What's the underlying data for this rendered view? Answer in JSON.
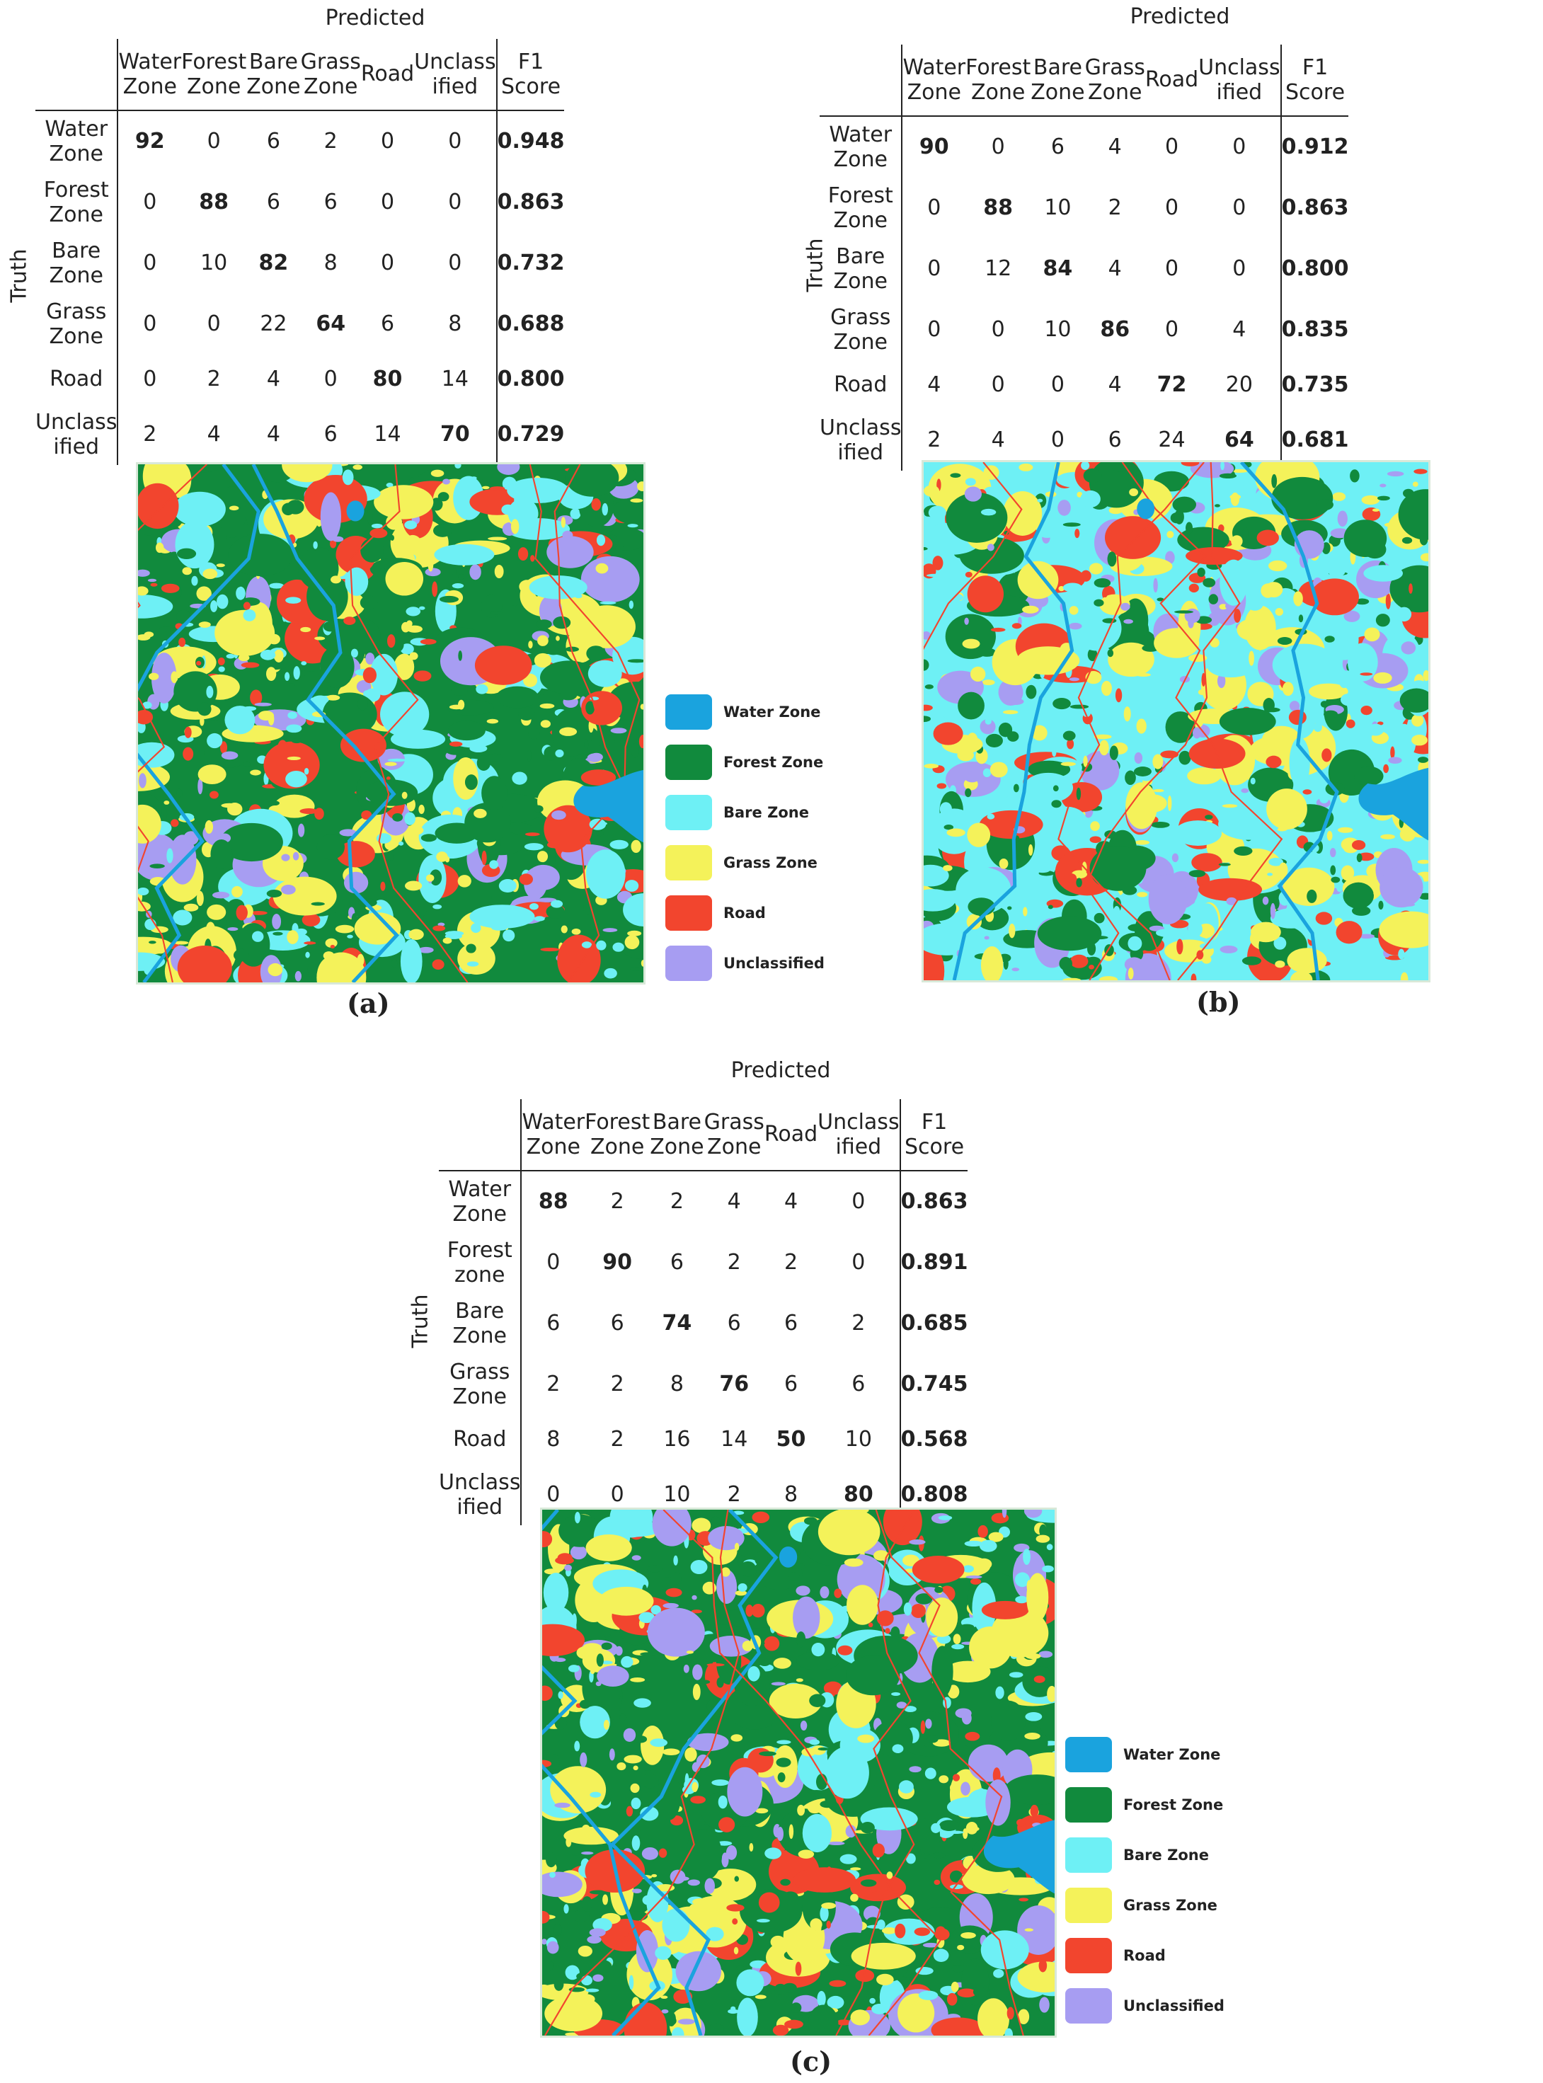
{
  "colors": {
    "water": "#1aa3de",
    "forest": "#118a3d",
    "bare": "#6ef0f5",
    "grass": "#f4f25a",
    "road": "#f2452e",
    "unclassified": "#a79df2"
  },
  "legend": [
    {
      "label": "Water Zone",
      "color": "#1aa3de"
    },
    {
      "label": "Forest Zone",
      "color": "#118a3d"
    },
    {
      "label": "Bare Zone",
      "color": "#6ef0f5"
    },
    {
      "label": "Grass Zone",
      "color": "#f4f25a"
    },
    {
      "label": "Road",
      "color": "#f2452e"
    },
    {
      "label": "Unclassified",
      "color": "#a79df2"
    }
  ],
  "panels": [
    {
      "caption": "(a)",
      "predicted_label": "Predicted",
      "truth_label": "Truth",
      "columns": [
        "Water\nZone",
        "Forest\nZone",
        "Bare\nZone",
        "Grass\nZone",
        "Road",
        "Unclass\nified"
      ],
      "f1_header": "F1\nScore",
      "rows": [
        {
          "label": "Water\nZone",
          "values": [
            "92",
            "0",
            "6",
            "2",
            "0",
            "0"
          ],
          "f1": "0.948"
        },
        {
          "label": "Forest\nZone",
          "values": [
            "0",
            "88",
            "6",
            "6",
            "0",
            "0"
          ],
          "f1": "0.863"
        },
        {
          "label": "Bare\nZone",
          "values": [
            "0",
            "10",
            "82",
            "8",
            "0",
            "0"
          ],
          "f1": "0.732"
        },
        {
          "label": "Grass\nZone",
          "values": [
            "0",
            "0",
            "22",
            "64",
            "6",
            "8"
          ],
          "f1": "0.688"
        },
        {
          "label": "Road",
          "values": [
            "0",
            "2",
            "4",
            "0",
            "80",
            "14"
          ],
          "f1": "0.800"
        },
        {
          "label": "Unclass\nified",
          "values": [
            "2",
            "4",
            "4",
            "6",
            "14",
            "70"
          ],
          "f1": "0.729"
        }
      ]
    },
    {
      "caption": "(b)",
      "predicted_label": "Predicted",
      "truth_label": "Truth",
      "columns": [
        "Water\nZone",
        "Forest\nZone",
        "Bare\nZone",
        "Grass\nZone",
        "Road",
        "Unclass\nified"
      ],
      "f1_header": "F1\nScore",
      "rows": [
        {
          "label": "Water\nZone",
          "values": [
            "90",
            "0",
            "6",
            "4",
            "0",
            "0"
          ],
          "f1": "0.912"
        },
        {
          "label": "Forest\nZone",
          "values": [
            "0",
            "88",
            "10",
            "2",
            "0",
            "0"
          ],
          "f1": "0.863"
        },
        {
          "label": "Bare\nZone",
          "values": [
            "0",
            "12",
            "84",
            "4",
            "0",
            "0"
          ],
          "f1": "0.800"
        },
        {
          "label": "Grass\nZone",
          "values": [
            "0",
            "0",
            "10",
            "86",
            "0",
            "4"
          ],
          "f1": "0.835"
        },
        {
          "label": "Road",
          "values": [
            "4",
            "0",
            "0",
            "4",
            "72",
            "20"
          ],
          "f1": "0.735"
        },
        {
          "label": "Unclass\nified",
          "values": [
            "2",
            "4",
            "0",
            "6",
            "24",
            "64"
          ],
          "f1": "0.681"
        }
      ]
    },
    {
      "caption": "(c)",
      "predicted_label": "Predicted",
      "truth_label": "Truth",
      "columns": [
        "Water\nZone",
        "Forest\nZone",
        "Bare\nZone",
        "Grass\nZone",
        "Road",
        "Unclass\nified"
      ],
      "f1_header": "F1\nScore",
      "rows": [
        {
          "label": "Water\nZone",
          "values": [
            "88",
            "2",
            "2",
            "4",
            "4",
            "0"
          ],
          "f1": "0.863"
        },
        {
          "label": "Forest\nzone",
          "values": [
            "0",
            "90",
            "6",
            "2",
            "2",
            "0"
          ],
          "f1": "0.891"
        },
        {
          "label": "Bare\nZone",
          "values": [
            "6",
            "6",
            "74",
            "6",
            "6",
            "2"
          ],
          "f1": "0.685"
        },
        {
          "label": "Grass\nZone",
          "values": [
            "2",
            "2",
            "8",
            "76",
            "6",
            "6"
          ],
          "f1": "0.745"
        },
        {
          "label": "Road",
          "values": [
            "8",
            "2",
            "16",
            "14",
            "50",
            "10"
          ],
          "f1": "0.568"
        },
        {
          "label": "Unclass\nified",
          "values": [
            "0",
            "0",
            "10",
            "2",
            "8",
            "80"
          ],
          "f1": "0.808"
        }
      ]
    }
  ]
}
